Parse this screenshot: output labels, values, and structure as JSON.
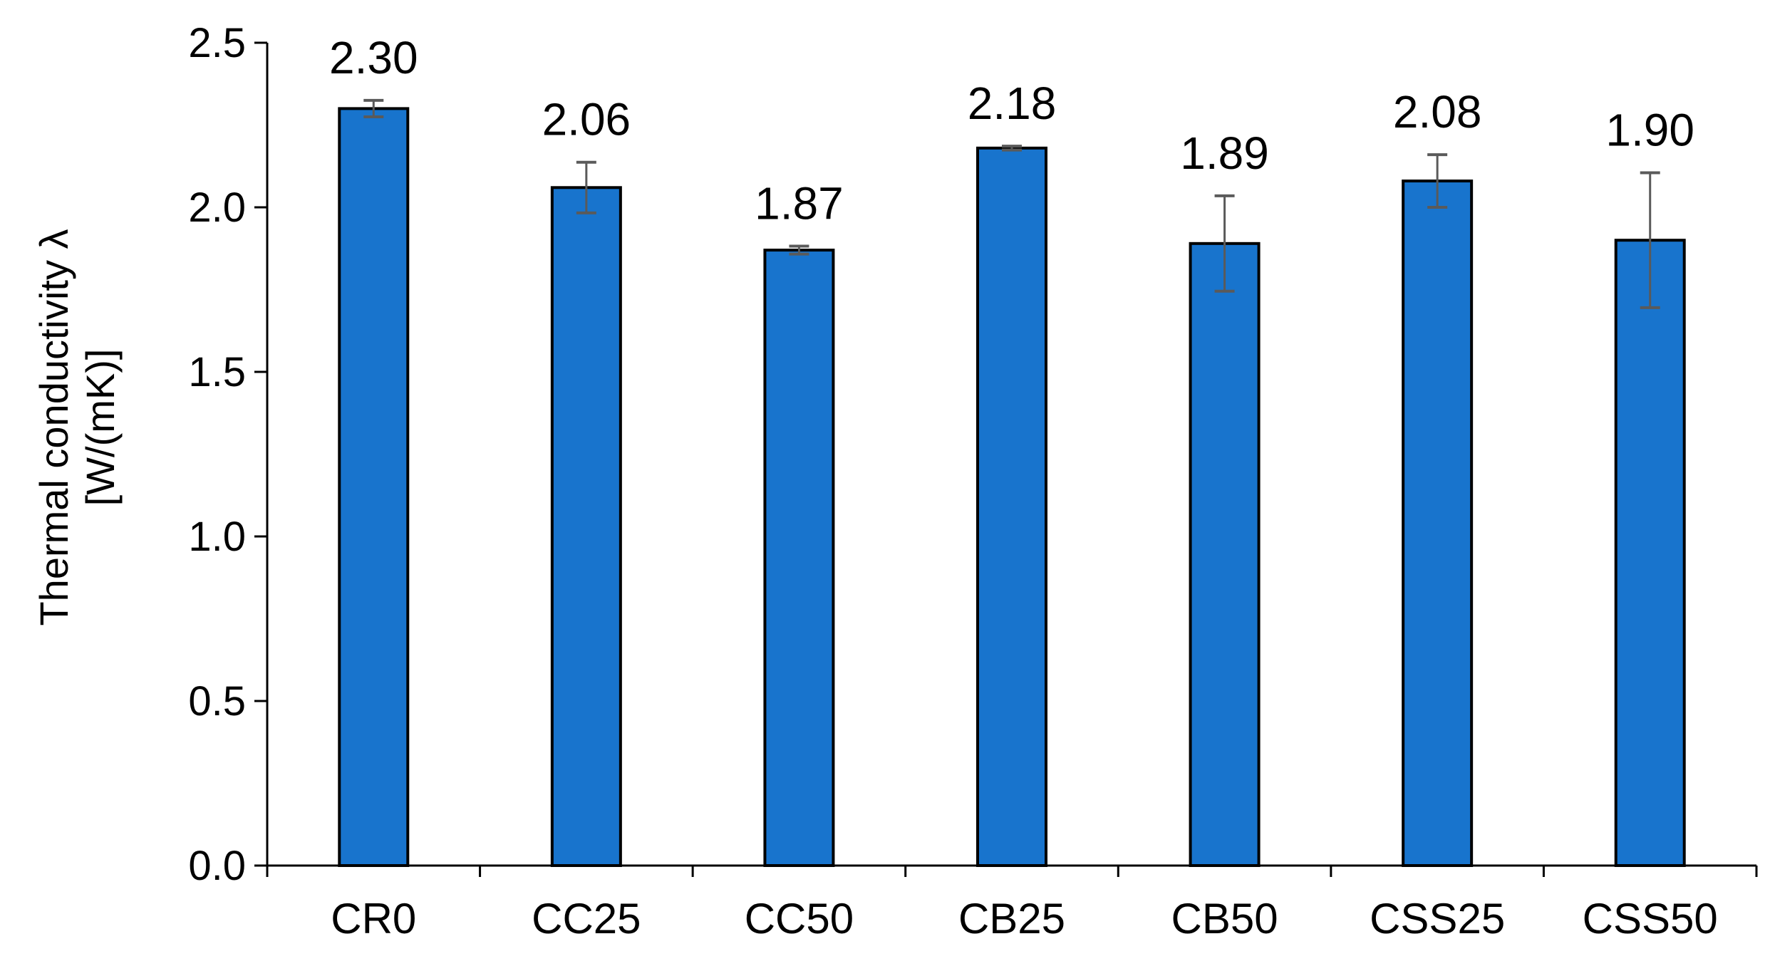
{
  "chart_data": {
    "type": "bar",
    "categories": [
      "CR0",
      "CC25",
      "CC50",
      "CB25",
      "CB50",
      "CSS25",
      "CSS50"
    ],
    "values": [
      2.3,
      2.06,
      1.87,
      2.18,
      1.89,
      2.08,
      1.9
    ],
    "value_labels": [
      "2.30",
      "2.06",
      "1.87",
      "2.18",
      "1.89",
      "2.08",
      "1.90"
    ],
    "error_bars": [
      0.025,
      0.077,
      0.012,
      0.006,
      0.145,
      0.08,
      0.205
    ],
    "ylabel": [
      "Thermal conductivity λ",
      "[W/(mK)]"
    ],
    "xlabel": "",
    "title": "",
    "ylim": [
      0.0,
      2.5
    ],
    "yticks": [
      "0.0",
      "0.5",
      "1.0",
      "1.5",
      "2.0",
      "2.5"
    ],
    "grid": false,
    "legend": "none",
    "colors": {
      "bar": "#1874CD",
      "bar_edge": "#000000",
      "error_bar": "#5A5A5A",
      "axis": "#000000"
    }
  }
}
